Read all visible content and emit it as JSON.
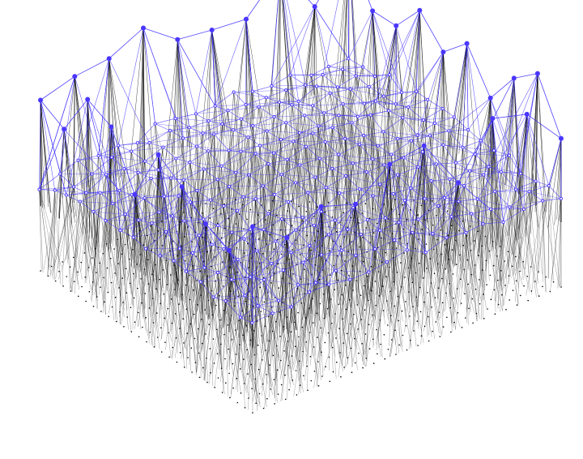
{
  "diagram": {
    "type": "3d-layered-graph",
    "layers": [
      {
        "name": "base-grid",
        "node_color": "#000000",
        "edge_color": "#000000",
        "grid_columns": 56,
        "grid_rows": 56
      },
      {
        "name": "upper-mesh",
        "node_color": "#3f2cff",
        "edge_color": "#3b2cff"
      }
    ],
    "colors": {
      "background": "#ffffff",
      "base_edges": "#000000",
      "upper_edges": "#3b2cff",
      "upper_nodes": "#4a36ff"
    }
  }
}
